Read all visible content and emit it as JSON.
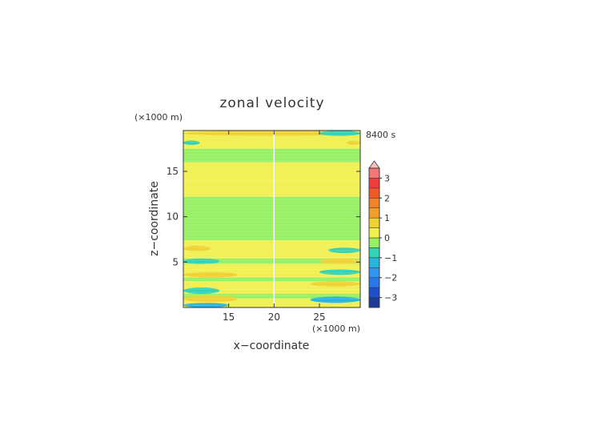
{
  "chart_data": {
    "type": "heatmap",
    "title": "zonal velocity",
    "xlabel": "x−coordinate",
    "ylabel": "z−coordinate",
    "x_unit": "(×1000 m)",
    "y_unit": "(×1000 m)",
    "time_label": "8400 s",
    "xlim": [
      10,
      29.5
    ],
    "ylim": [
      0,
      19.5
    ],
    "x_ticks": [
      15,
      20,
      25
    ],
    "y_ticks": [
      5,
      10,
      15
    ],
    "colorbar": {
      "levels": [
        -3.5,
        -3,
        -2.5,
        -2,
        -1.5,
        -1,
        -0.5,
        0,
        0.5,
        1,
        1.5,
        2,
        2.5,
        3,
        3.5
      ],
      "colors": [
        "#1e3c96",
        "#1e50c8",
        "#2878e6",
        "#3296f0",
        "#28b4dc",
        "#32d2b4",
        "#96f064",
        "#f0f050",
        "#f0d232",
        "#f0a028",
        "#f08228",
        "#f05a28",
        "#f03c3c",
        "#f07878",
        "#f8c0c0"
      ],
      "tick_labels": [
        "3",
        "2",
        "1",
        "0",
        "−1",
        "−2",
        "−3"
      ],
      "tick_values": [
        3,
        2,
        1,
        0,
        -1,
        -2,
        -3
      ],
      "extend": "max"
    },
    "background_bands": [
      {
        "z": [
          0,
          0.45
        ],
        "level": 0
      },
      {
        "z": [
          0.45,
          1.0
        ],
        "level": 0.25
      },
      {
        "z": [
          1.0,
          1.5
        ],
        "level": -0.25
      },
      {
        "z": [
          1.5,
          2.0
        ],
        "level": 0.25
      },
      {
        "z": [
          2.0,
          2.9
        ],
        "level": 0.25
      },
      {
        "z": [
          2.9,
          3.3
        ],
        "level": -0.25
      },
      {
        "z": [
          3.3,
          4.2
        ],
        "level": 0.25
      },
      {
        "z": [
          4.2,
          4.8
        ],
        "level": 0.25
      },
      {
        "z": [
          4.8,
          5.4
        ],
        "level": -0.25
      },
      {
        "z": [
          5.4,
          6.1
        ],
        "level": 0.25
      },
      {
        "z": [
          6.1,
          6.8
        ],
        "level": 0.25
      },
      {
        "z": [
          6.8,
          7.4
        ],
        "level": 0.25
      },
      {
        "z": [
          7.4,
          12.2
        ],
        "level": -0.25
      },
      {
        "z": [
          12.2,
          14.0
        ],
        "level": 0.25
      },
      {
        "z": [
          14.0,
          16.0
        ],
        "level": 0.25
      },
      {
        "z": [
          16.0,
          17.5
        ],
        "level": -0.25
      },
      {
        "z": [
          17.5,
          19.5
        ],
        "level": 0.25
      }
    ],
    "features": [
      {
        "x": [
          10,
          15
        ],
        "z": [
          0,
          0.5
        ],
        "level": -1.25
      },
      {
        "x": [
          10,
          16
        ],
        "z": [
          0.6,
          1.3
        ],
        "level": 0.75
      },
      {
        "x": [
          10,
          14
        ],
        "z": [
          1.5,
          2.2
        ],
        "level": -0.75
      },
      {
        "x": [
          10,
          16
        ],
        "z": [
          3.3,
          3.9
        ],
        "level": 0.75
      },
      {
        "x": [
          10,
          14
        ],
        "z": [
          4.8,
          5.4
        ],
        "level": -0.75
      },
      {
        "x": [
          10,
          13
        ],
        "z": [
          6.2,
          6.8
        ],
        "level": 0.75
      },
      {
        "x": [
          24,
          29.5
        ],
        "z": [
          0.5,
          1.2
        ],
        "level": -1.25
      },
      {
        "x": [
          24,
          29.5
        ],
        "z": [
          2.3,
          2.9
        ],
        "level": 0.75
      },
      {
        "x": [
          25,
          29.5
        ],
        "z": [
          3.6,
          4.2
        ],
        "level": -0.75
      },
      {
        "x": [
          25,
          29.5
        ],
        "z": [
          4.8,
          5.4
        ],
        "level": 0.75
      },
      {
        "x": [
          26,
          29.5
        ],
        "z": [
          6.0,
          6.6
        ],
        "level": -0.75
      },
      {
        "x": [
          10,
          11.8
        ],
        "z": [
          17.9,
          18.4
        ],
        "level": -0.75
      },
      {
        "x": [
          28,
          29.5
        ],
        "z": [
          17.9,
          18.4
        ],
        "level": 0.75
      },
      {
        "x": [
          10,
          29.5
        ],
        "z": [
          18.9,
          19.5
        ],
        "level": 0.75
      },
      {
        "x": [
          25,
          29.5
        ],
        "z": [
          18.9,
          19.5
        ],
        "level": -0.75
      }
    ]
  }
}
